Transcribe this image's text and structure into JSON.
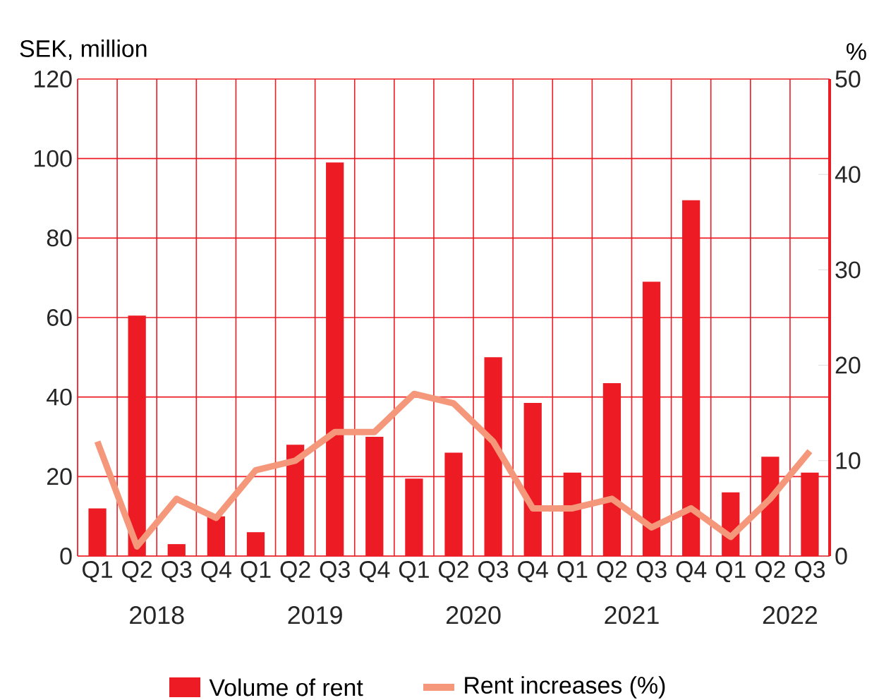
{
  "chart_data": {
    "type": "bar",
    "ylabel": "SEK, million",
    "y2label": "%",
    "categories": [
      "Q1",
      "Q2",
      "Q3",
      "Q4",
      "Q1",
      "Q2",
      "Q3",
      "Q4",
      "Q1",
      "Q2",
      "Q3",
      "Q4",
      "Q1",
      "Q2",
      "Q3",
      "Q4",
      "Q1",
      "Q2",
      "Q3"
    ],
    "series": [
      {
        "name": "Volume of rent",
        "color": "#ed1c24",
        "values": [
          12,
          60.5,
          3,
          10,
          6,
          28,
          99,
          30,
          19.5,
          26,
          50,
          38.5,
          21,
          43.5,
          69,
          89.5,
          16,
          25,
          21
        ]
      },
      {
        "name": "Rent increases (%)",
        "type": "line",
        "axis": "y2",
        "color": "#f4977a",
        "values": [
          12,
          1,
          6,
          4,
          9,
          10,
          13,
          13,
          17,
          16,
          12,
          5,
          5,
          6,
          3,
          5,
          2,
          6,
          11
        ]
      }
    ],
    "ylim": [
      0,
      120
    ],
    "yticks": [
      0,
      20,
      40,
      60,
      80,
      100,
      120
    ],
    "y2lim": [
      0,
      50
    ],
    "y2ticks": [
      0,
      10,
      20,
      30,
      40,
      50
    ],
    "grid": true,
    "legend": "bottom",
    "marker": "none",
    "line_style": "solid",
    "annotations": [
      "2018",
      "2019",
      "2020",
      "2021",
      "2022"
    ]
  }
}
